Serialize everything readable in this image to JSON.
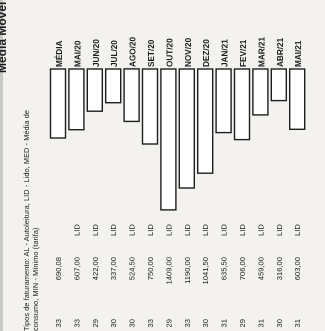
{
  "chart_data": {
    "type": "bar",
    "title": "Média Móvel",
    "orientation": "horizontal",
    "categories": [
      "MÉDIA",
      "MAI/20",
      "JUN/20",
      "JUL/20",
      "AGO/20",
      "SET/20",
      "OUT/20",
      "NOV/20",
      "DEZ/20",
      "JAN/21",
      "FEV/21",
      "MAR/21",
      "ABR/21",
      "MAI/21"
    ],
    "values": [
      690.08,
      607.0,
      422.0,
      337.0,
      524.5,
      750.0,
      1409.0,
      1190.0,
      1041.5,
      635.5,
      706.0,
      459.0,
      316.0,
      603.0
    ],
    "value_labels": [
      "690,08",
      "607,00",
      "422,00",
      "337,00",
      "524,50",
      "750,00",
      "1409,00",
      "1190,00",
      "1041,50",
      "635,50",
      "706,00",
      "459,00",
      "316,00",
      "603,00"
    ],
    "types": [
      "",
      "LID",
      "LID",
      "LID",
      "LID",
      "LID",
      "LID",
      "LID",
      "LID",
      "LID",
      "LID",
      "LID",
      "LID",
      "LID"
    ],
    "counts": [
      "33",
      "33",
      "29",
      "30",
      "30",
      "33",
      "29",
      "33",
      "30",
      "31",
      "29",
      "31",
      "30",
      "31"
    ],
    "footnote": [
      "Tipos de faturamento: AL - Autoleitura, LID - Lido, MED - Média de",
      "consumo, MIN - Mínimo (tarifa)"
    ],
    "colors": {
      "bar_fill": "#ffffff",
      "bar_stroke": "#1f1f1f",
      "ink": "#1d1d1d",
      "paper": "#f3f2ee"
    }
  }
}
